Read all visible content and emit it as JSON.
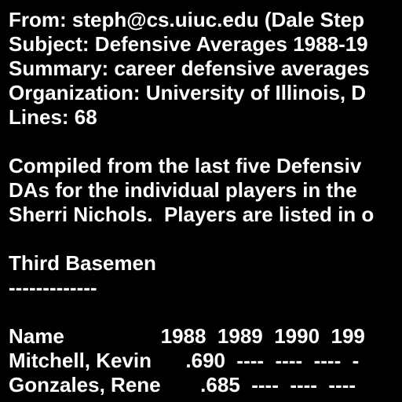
{
  "header": {
    "from": "From: steph@cs.uiuc.edu (Dale Step",
    "subject": "Subject: Defensive Averages 1988-19",
    "summary": "Summary: career defensive averages",
    "organization": "Organization: University of Illinois, D",
    "lines": "Lines: 68"
  },
  "body": {
    "intro": [
      "Compiled from the last five Defensiv",
      "DAs for the individual players in the",
      "Sherri Nichols.  Players are listed in o"
    ],
    "section_title": "Third Basemen",
    "section_rule": "-------------",
    "table": {
      "header": "Name                 1988  1989  1990  199",
      "rows": [
        "Mitchell, Kevin      .690  ----  ----  ----  -",
        "Gonzales, Rene       .685  ----  ----  ----"
      ]
    }
  }
}
